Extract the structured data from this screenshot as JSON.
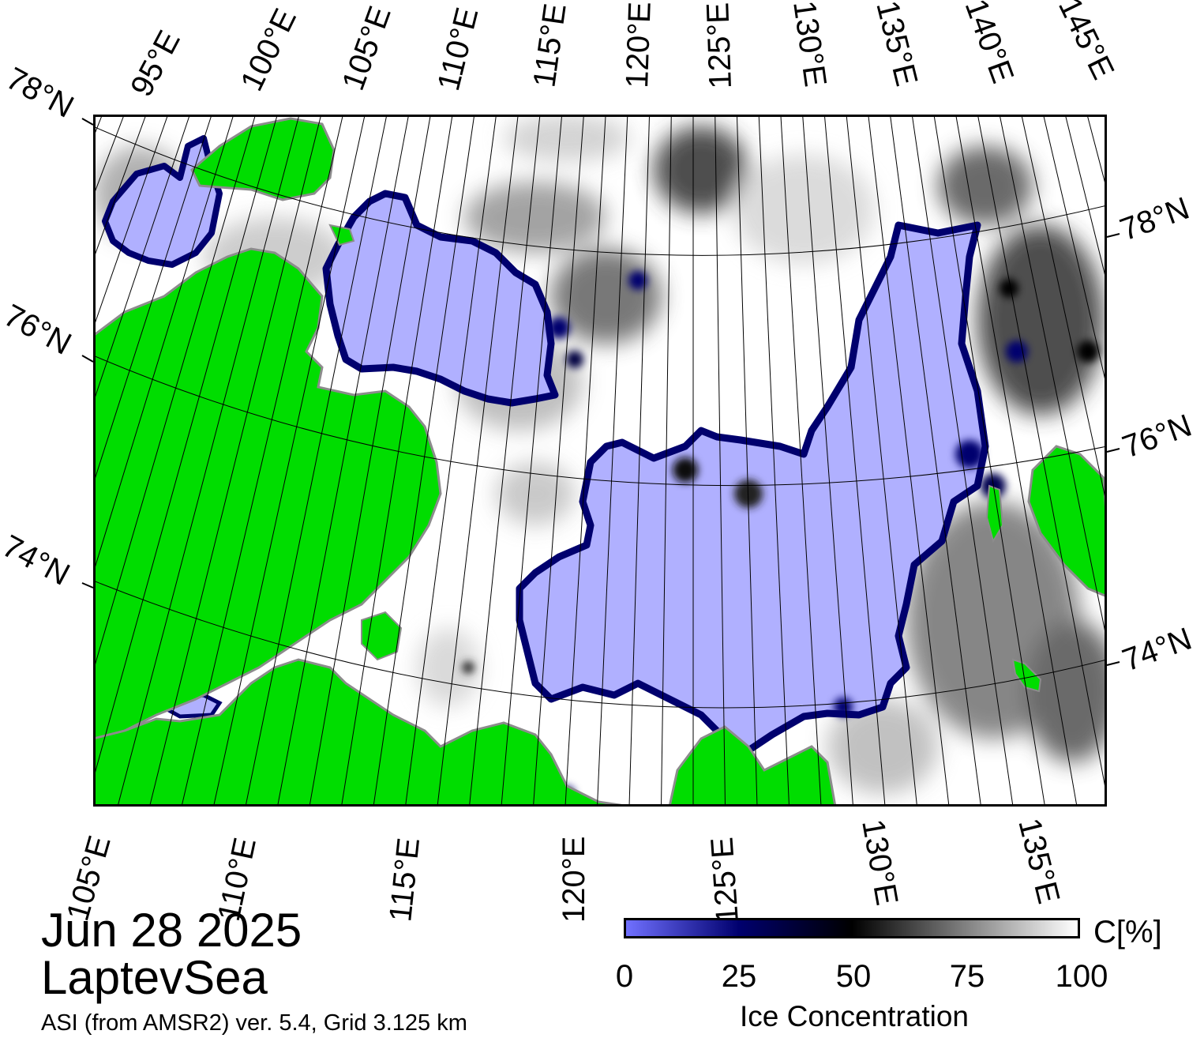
{
  "map": {
    "date": "Jun 28 2025",
    "region": "LaptevSea",
    "source": "ASI (from AMSR2) ver. 5.4,  Grid 3.125 km",
    "colors": {
      "land": "#00dd00",
      "land_edge": "#8c8c8c",
      "low_ice": "#b0b0ff",
      "mid_ice": "#00006e",
      "open_water": "#ffffff",
      "frame": "#000000"
    },
    "top_lon_labels": [
      "95°E",
      "100°E",
      "105°E",
      "110°E",
      "115°E",
      "120°E",
      "125°E",
      "130°E",
      "135°E",
      "140°E",
      "145°E"
    ],
    "bottom_lon_labels": [
      "105°E",
      "110°E",
      "115°E",
      "120°E",
      "125°E",
      "130°E",
      "135°E"
    ],
    "left_lat_labels": [
      "78°N",
      "76°N",
      "74°N"
    ],
    "right_lat_labels": [
      "78°N",
      "76°N",
      "74°N"
    ]
  },
  "colorbar": {
    "title": "Ice Concentration",
    "unit": "C[%]",
    "ticks": [
      "0",
      "25",
      "50",
      "75",
      "100"
    ],
    "stops": [
      "#7070ff",
      "#00006e",
      "#000000",
      "#808080",
      "#ffffff"
    ]
  }
}
